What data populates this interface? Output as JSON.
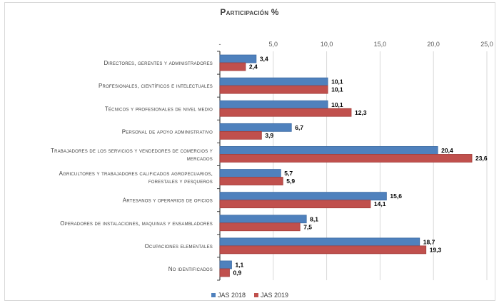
{
  "chart_data": {
    "type": "bar",
    "orientation": "horizontal",
    "title": "Participación %",
    "categories": [
      [
        "Directores, gerentes y administradores"
      ],
      [
        "Profesionales, científicos e intelectuales"
      ],
      [
        "Técnicos y profesionales de nivel medio"
      ],
      [
        "Personal de apoyo administrativo"
      ],
      [
        "Trabajadores de los servicios y vendedores de comercios y",
        "mercados"
      ],
      [
        "Agricultores y trabajadores calificados agropecuarios,",
        "forestales y pesqueros"
      ],
      [
        "Artesanos y operarios de oficios"
      ],
      [
        "Operadores de instalaciones, maquinas y ensambladores"
      ],
      [
        "Ocupaciones elementales"
      ],
      [
        "No identificados"
      ]
    ],
    "series": [
      {
        "name": "JAS 2018",
        "color": "#4f81bd",
        "border": "#3b6aa3",
        "values": [
          3.4,
          10.1,
          10.1,
          6.7,
          20.4,
          5.7,
          15.6,
          8.1,
          18.7,
          1.1
        ],
        "labels": [
          "3,4",
          "10,1",
          "10,1",
          "6,7",
          "20,4",
          "5,7",
          "15,6",
          "8,1",
          "18,7",
          "1,1"
        ]
      },
      {
        "name": "JAS 2019",
        "color": "#c0504d",
        "border": "#a33d3a",
        "values": [
          2.4,
          10.1,
          12.3,
          3.9,
          23.6,
          5.9,
          14.1,
          7.5,
          19.3,
          0.9
        ],
        "labels": [
          "2,4",
          "10,1",
          "12,3",
          "3,9",
          "23,6",
          "5,9",
          "14,1",
          "7,5",
          "19,3",
          "0,9"
        ]
      }
    ],
    "x_ticks": [
      {
        "value": 0,
        "label": "-"
      },
      {
        "value": 5,
        "label": "5,0"
      },
      {
        "value": 10,
        "label": "10,0"
      },
      {
        "value": 15,
        "label": "15,0"
      },
      {
        "value": 20,
        "label": "20,0"
      },
      {
        "value": 25,
        "label": "25,0"
      }
    ],
    "xlim": [
      0,
      25
    ],
    "grid": true,
    "legend": "bottom"
  }
}
